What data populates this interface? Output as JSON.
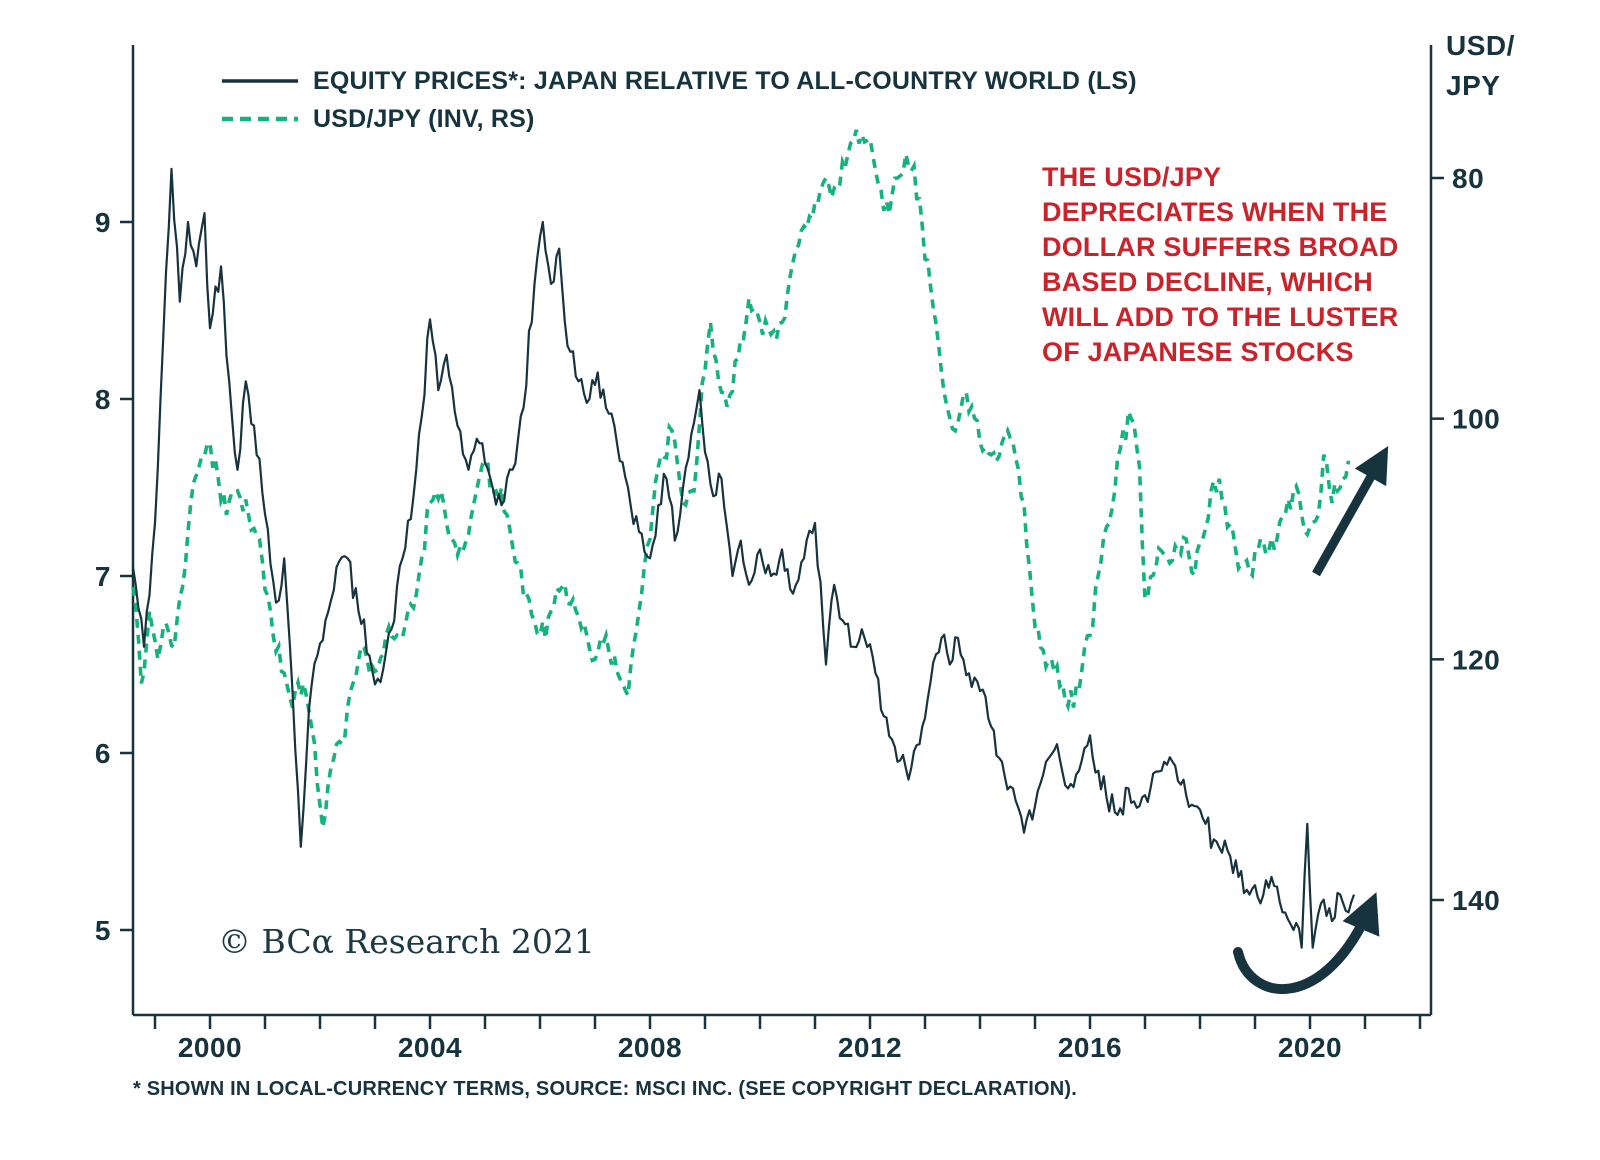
{
  "chart_data": {
    "type": "line",
    "title": "",
    "right_axis_title": "USD/\nJPY",
    "palette": {
      "dark": "#17333d",
      "green": "#16b27c",
      "red": "#c9242c",
      "background": "#ffffff"
    },
    "x_axis": {
      "range": [
        1998.6,
        2022.2
      ],
      "tick_years": [
        1999,
        2000,
        2001,
        2002,
        2003,
        2004,
        2005,
        2006,
        2007,
        2008,
        2009,
        2010,
        2011,
        2012,
        2013,
        2014,
        2015,
        2016,
        2017,
        2018,
        2019,
        2020,
        2021,
        2022
      ],
      "label_years": [
        2000,
        2004,
        2008,
        2012,
        2016,
        2020
      ]
    },
    "left_axis": {
      "ticks": [
        5,
        6,
        7,
        8,
        9
      ],
      "range": [
        4.55,
        9.48
      ]
    },
    "right_axis": {
      "ticks": [
        80,
        100,
        120,
        140
      ],
      "inverted": true,
      "range": [
        75,
        145
      ]
    },
    "series": [
      {
        "name": "equity-japan-relative",
        "label": "EQUITY PRICES*: JAPAN RELATIVE TO ALL-COUNTRY WORLD (LS)",
        "axis": "left",
        "style": "solid",
        "color": "#17333d",
        "points": [
          [
            1998.6,
            7.05
          ],
          [
            1998.8,
            6.6
          ],
          [
            1999.0,
            7.3
          ],
          [
            1999.1,
            8.0
          ],
          [
            1999.3,
            9.3
          ],
          [
            1999.45,
            8.55
          ],
          [
            1999.6,
            9.0
          ],
          [
            1999.75,
            8.75
          ],
          [
            1999.9,
            9.05
          ],
          [
            2000.0,
            8.4
          ],
          [
            2000.2,
            8.75
          ],
          [
            2000.35,
            8.1
          ],
          [
            2000.5,
            7.6
          ],
          [
            2000.65,
            8.1
          ],
          [
            2000.8,
            7.85
          ],
          [
            2001.0,
            7.35
          ],
          [
            2001.2,
            6.85
          ],
          [
            2001.35,
            7.1
          ],
          [
            2001.5,
            6.35
          ],
          [
            2001.65,
            5.47
          ],
          [
            2001.8,
            6.25
          ],
          [
            2001.95,
            6.55
          ],
          [
            2002.1,
            6.75
          ],
          [
            2002.3,
            7.05
          ],
          [
            2002.5,
            7.1
          ],
          [
            2002.7,
            6.8
          ],
          [
            2002.9,
            6.55
          ],
          [
            2003.1,
            6.4
          ],
          [
            2003.3,
            6.7
          ],
          [
            2003.5,
            7.1
          ],
          [
            2003.7,
            7.45
          ],
          [
            2003.85,
            7.9
          ],
          [
            2004.0,
            8.45
          ],
          [
            2004.15,
            8.05
          ],
          [
            2004.3,
            8.25
          ],
          [
            2004.5,
            7.85
          ],
          [
            2004.7,
            7.6
          ],
          [
            2004.9,
            7.75
          ],
          [
            2005.1,
            7.55
          ],
          [
            2005.3,
            7.4
          ],
          [
            2005.5,
            7.6
          ],
          [
            2005.7,
            7.95
          ],
          [
            2005.9,
            8.65
          ],
          [
            2006.05,
            9.0
          ],
          [
            2006.2,
            8.65
          ],
          [
            2006.35,
            8.85
          ],
          [
            2006.5,
            8.3
          ],
          [
            2006.7,
            8.1
          ],
          [
            2006.9,
            8.0
          ],
          [
            2007.05,
            8.15
          ],
          [
            2007.2,
            7.95
          ],
          [
            2007.4,
            7.75
          ],
          [
            2007.6,
            7.5
          ],
          [
            2007.8,
            7.25
          ],
          [
            2008.0,
            7.1
          ],
          [
            2008.15,
            7.4
          ],
          [
            2008.3,
            7.55
          ],
          [
            2008.45,
            7.2
          ],
          [
            2008.6,
            7.5
          ],
          [
            2008.75,
            7.8
          ],
          [
            2008.9,
            8.05
          ],
          [
            2009.0,
            7.7
          ],
          [
            2009.15,
            7.45
          ],
          [
            2009.3,
            7.55
          ],
          [
            2009.5,
            7.0
          ],
          [
            2009.65,
            7.2
          ],
          [
            2009.8,
            6.95
          ],
          [
            2010.0,
            7.15
          ],
          [
            2010.2,
            7.0
          ],
          [
            2010.4,
            7.15
          ],
          [
            2010.6,
            6.9
          ],
          [
            2010.8,
            7.1
          ],
          [
            2011.0,
            7.3
          ],
          [
            2011.2,
            6.5
          ],
          [
            2011.35,
            6.95
          ],
          [
            2011.5,
            6.75
          ],
          [
            2011.7,
            6.6
          ],
          [
            2011.9,
            6.65
          ],
          [
            2012.1,
            6.45
          ],
          [
            2012.3,
            6.2
          ],
          [
            2012.5,
            5.95
          ],
          [
            2012.7,
            5.85
          ],
          [
            2012.9,
            6.05
          ],
          [
            2013.1,
            6.4
          ],
          [
            2013.3,
            6.65
          ],
          [
            2013.45,
            6.5
          ],
          [
            2013.6,
            6.65
          ],
          [
            2013.8,
            6.45
          ],
          [
            2014.0,
            6.35
          ],
          [
            2014.2,
            6.15
          ],
          [
            2014.4,
            5.95
          ],
          [
            2014.6,
            5.8
          ],
          [
            2014.8,
            5.55
          ],
          [
            2015.0,
            5.7
          ],
          [
            2015.2,
            5.95
          ],
          [
            2015.4,
            6.05
          ],
          [
            2015.6,
            5.8
          ],
          [
            2015.8,
            5.9
          ],
          [
            2016.0,
            6.1
          ],
          [
            2016.15,
            5.9
          ],
          [
            2016.3,
            5.75
          ],
          [
            2016.5,
            5.65
          ],
          [
            2016.7,
            5.8
          ],
          [
            2016.9,
            5.7
          ],
          [
            2017.1,
            5.8
          ],
          [
            2017.3,
            5.9
          ],
          [
            2017.5,
            5.95
          ],
          [
            2017.7,
            5.85
          ],
          [
            2017.9,
            5.7
          ],
          [
            2018.1,
            5.6
          ],
          [
            2018.3,
            5.5
          ],
          [
            2018.5,
            5.45
          ],
          [
            2018.7,
            5.3
          ],
          [
            2018.9,
            5.2
          ],
          [
            2019.1,
            5.15
          ],
          [
            2019.3,
            5.3
          ],
          [
            2019.5,
            5.1
          ],
          [
            2019.7,
            5.0
          ],
          [
            2019.85,
            4.9
          ],
          [
            2019.95,
            5.6
          ],
          [
            2020.05,
            4.9
          ],
          [
            2020.2,
            5.15
          ],
          [
            2020.4,
            5.05
          ],
          [
            2020.55,
            5.2
          ],
          [
            2020.7,
            5.1
          ],
          [
            2020.8,
            5.2
          ]
        ]
      },
      {
        "name": "usdjpy-inverted",
        "label": "USD/JPY (INV, RS)",
        "axis": "right",
        "style": "dashed",
        "color": "#16b27c",
        "points": [
          [
            1998.6,
            114
          ],
          [
            1998.75,
            122
          ],
          [
            1998.9,
            116
          ],
          [
            1999.05,
            120
          ],
          [
            1999.2,
            117
          ],
          [
            1999.35,
            119
          ],
          [
            1999.5,
            114
          ],
          [
            1999.65,
            107
          ],
          [
            1999.8,
            104
          ],
          [
            2000.0,
            102
          ],
          [
            2000.15,
            105
          ],
          [
            2000.3,
            108
          ],
          [
            2000.5,
            106
          ],
          [
            2000.7,
            108
          ],
          [
            2000.9,
            110
          ],
          [
            2001.1,
            116
          ],
          [
            2001.3,
            121
          ],
          [
            2001.5,
            124
          ],
          [
            2001.7,
            122
          ],
          [
            2001.9,
            127
          ],
          [
            2002.05,
            134
          ],
          [
            2002.2,
            129
          ],
          [
            2002.4,
            127
          ],
          [
            2002.6,
            122
          ],
          [
            2002.8,
            119
          ],
          [
            2003.0,
            121
          ],
          [
            2003.2,
            118
          ],
          [
            2003.4,
            118
          ],
          [
            2003.6,
            116
          ],
          [
            2003.8,
            113
          ],
          [
            2004.0,
            107
          ],
          [
            2004.2,
            106
          ],
          [
            2004.4,
            110
          ],
          [
            2004.6,
            111
          ],
          [
            2004.8,
            107
          ],
          [
            2005.0,
            104
          ],
          [
            2005.2,
            106
          ],
          [
            2005.4,
            108
          ],
          [
            2005.6,
            112
          ],
          [
            2005.8,
            115
          ],
          [
            2006.0,
            118
          ],
          [
            2006.2,
            116
          ],
          [
            2006.4,
            114
          ],
          [
            2006.6,
            115
          ],
          [
            2006.8,
            117
          ],
          [
            2007.0,
            120
          ],
          [
            2007.2,
            118
          ],
          [
            2007.4,
            121
          ],
          [
            2007.6,
            123
          ],
          [
            2007.8,
            116
          ],
          [
            2008.0,
            110
          ],
          [
            2008.2,
            103
          ],
          [
            2008.4,
            101
          ],
          [
            2008.6,
            107
          ],
          [
            2008.8,
            106
          ],
          [
            2008.95,
            97
          ],
          [
            2009.1,
            92
          ],
          [
            2009.25,
            97
          ],
          [
            2009.4,
            99
          ],
          [
            2009.6,
            95
          ],
          [
            2009.8,
            90
          ],
          [
            2010.0,
            92
          ],
          [
            2010.2,
            93
          ],
          [
            2010.4,
            92
          ],
          [
            2010.6,
            87
          ],
          [
            2010.8,
            84
          ],
          [
            2011.0,
            82
          ],
          [
            2011.2,
            80
          ],
          [
            2011.4,
            81
          ],
          [
            2011.6,
            78
          ],
          [
            2011.75,
            76
          ],
          [
            2011.9,
            77
          ],
          [
            2012.05,
            78
          ],
          [
            2012.2,
            81
          ],
          [
            2012.35,
            83
          ],
          [
            2012.5,
            80
          ],
          [
            2012.65,
            78
          ],
          [
            2012.8,
            79
          ],
          [
            2012.95,
            84
          ],
          [
            2013.1,
            89
          ],
          [
            2013.25,
            94
          ],
          [
            2013.4,
            99
          ],
          [
            2013.55,
            101
          ],
          [
            2013.7,
            98
          ],
          [
            2013.85,
            99
          ],
          [
            2014.0,
            102
          ],
          [
            2014.2,
            103
          ],
          [
            2014.4,
            102
          ],
          [
            2014.6,
            102
          ],
          [
            2014.8,
            107
          ],
          [
            2014.95,
            115
          ],
          [
            2015.1,
            119
          ],
          [
            2015.3,
            120
          ],
          [
            2015.5,
            122
          ],
          [
            2015.7,
            124
          ],
          [
            2015.85,
            121
          ],
          [
            2016.0,
            118
          ],
          [
            2016.15,
            113
          ],
          [
            2016.3,
            109
          ],
          [
            2016.45,
            106
          ],
          [
            2016.6,
            101
          ],
          [
            2016.75,
            100
          ],
          [
            2016.9,
            104
          ],
          [
            2017.0,
            115
          ],
          [
            2017.15,
            113
          ],
          [
            2017.3,
            111
          ],
          [
            2017.45,
            112
          ],
          [
            2017.6,
            111
          ],
          [
            2017.75,
            110
          ],
          [
            2017.9,
            113
          ],
          [
            2018.05,
            110
          ],
          [
            2018.2,
            106
          ],
          [
            2018.35,
            105
          ],
          [
            2018.5,
            109
          ],
          [
            2018.65,
            111
          ],
          [
            2018.8,
            112
          ],
          [
            2018.95,
            113
          ],
          [
            2019.1,
            110
          ],
          [
            2019.25,
            111
          ],
          [
            2019.4,
            110
          ],
          [
            2019.55,
            108
          ],
          [
            2019.7,
            106
          ],
          [
            2019.85,
            108
          ],
          [
            2020.0,
            109
          ],
          [
            2020.15,
            108
          ],
          [
            2020.25,
            103
          ],
          [
            2020.4,
            107
          ],
          [
            2020.5,
            106
          ],
          [
            2020.6,
            105
          ],
          [
            2020.7,
            103.5
          ]
        ]
      }
    ],
    "annotation": {
      "text": "THE USD/JPY\nDEPRECIATES WHEN THE\nDOLLAR SUFFERS BROAD\nBASED DECLINE, WHICH\nWILL ADD TO THE LUSTER\nOF JAPANESE STOCKS",
      "color": "#c9242c"
    },
    "arrows": [
      {
        "name": "usdjpy-uptrend-arrow",
        "shape": "straight"
      },
      {
        "name": "equity-rebound-arrow",
        "shape": "curved"
      }
    ],
    "watermark": "© BCα Research 2021",
    "footnote": "* SHOWN IN LOCAL-CURRENCY TERMS, SOURCE: MSCI INC. (SEE COPYRIGHT DECLARATION)."
  }
}
